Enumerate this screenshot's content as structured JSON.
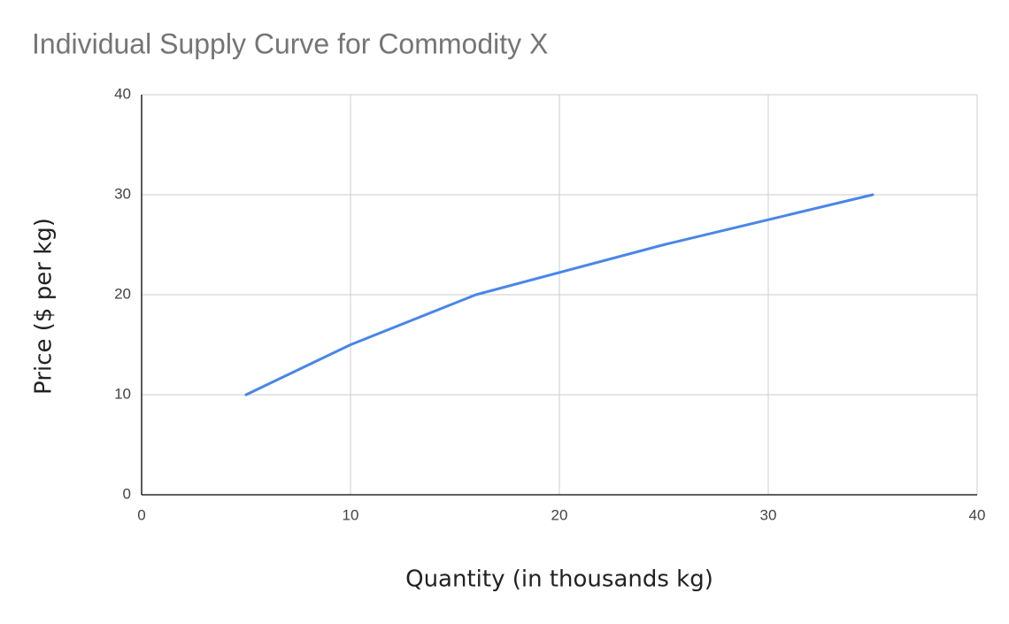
{
  "chart_data": {
    "type": "line",
    "title": "Individual Supply Curve for Commodity X",
    "x_label": "Quantity (in thousands kg)",
    "y_label": "Price ($ per kg)",
    "x": [
      5,
      10,
      16,
      25,
      35
    ],
    "series": [
      {
        "name": "Price",
        "color": "#4a86e8",
        "values": [
          10,
          15,
          20,
          25,
          30
        ]
      }
    ],
    "xlim": [
      0,
      40
    ],
    "xticks": [
      0,
      10,
      20,
      30,
      40
    ],
    "ylim": [
      0,
      40
    ],
    "yticks": [
      0,
      10,
      20,
      30,
      40
    ],
    "grid": true
  }
}
